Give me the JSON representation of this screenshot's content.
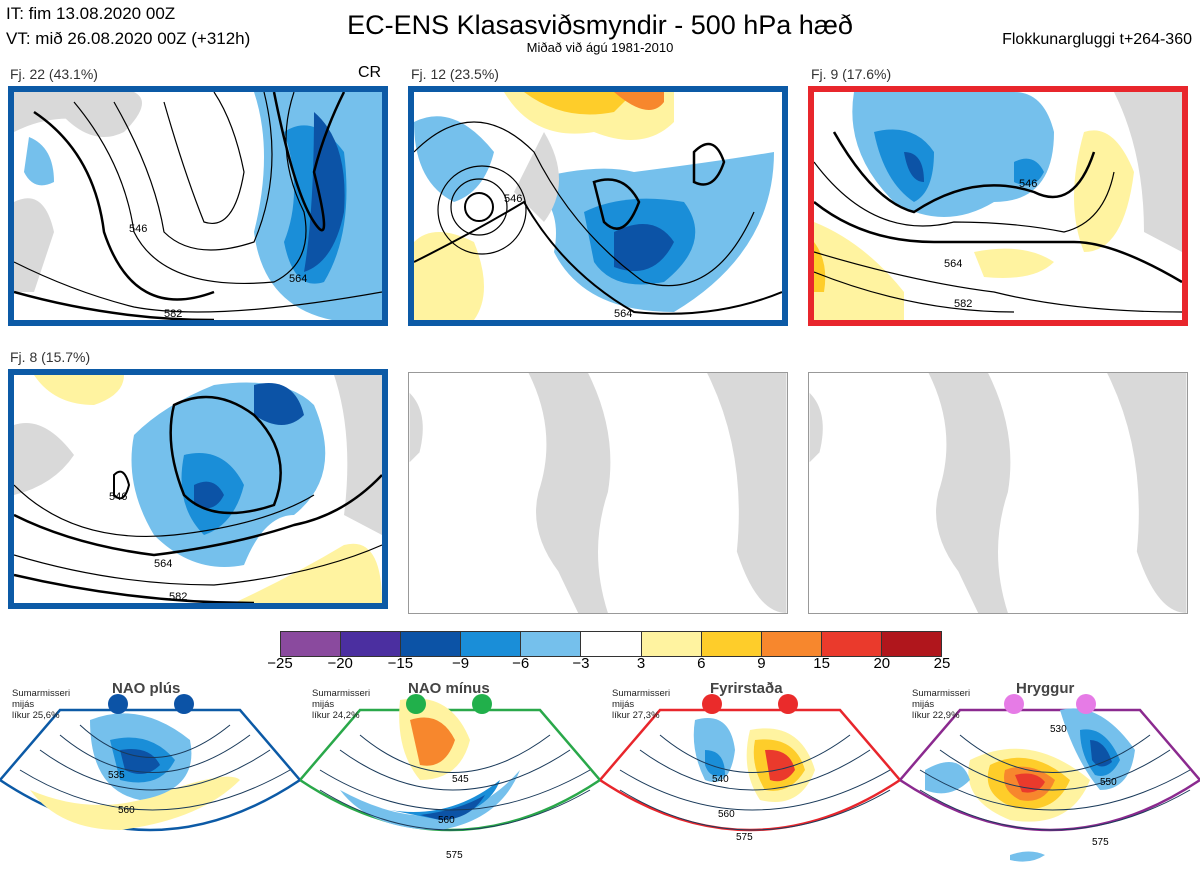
{
  "header": {
    "initial_time": "IT: fim 13.08.2020 00Z",
    "valid_time": "VT: mið 26.08.2020 00Z  (+312h)",
    "title": "EC-ENS Klasasviðsmyndir - 500 hPa hæð",
    "subtitle": "Miðað við ágú 1981-2010",
    "window": "Flokkunargluggi t+264-360"
  },
  "colors": {
    "blue_frame": "#0c5aa6",
    "red_frame": "#e8262c",
    "land": "#d9d9d9",
    "coast": "#8a5a3a"
  },
  "cr_label": "CR",
  "panels": [
    {
      "label": "Fj. 22 (43.1%)",
      "frame": "blue",
      "contours": [
        "546",
        "564",
        "582"
      ]
    },
    {
      "label": "Fj. 12 (23.5%)",
      "frame": "blue",
      "contours": [
        "546",
        "564"
      ]
    },
    {
      "label": "Fj. 9 (17.6%)",
      "frame": "red",
      "contours": [
        "546",
        "564",
        "582"
      ]
    },
    {
      "label": "Fj. 8 (15.7%)",
      "frame": "blue",
      "contours": [
        "546",
        "564",
        "582"
      ]
    }
  ],
  "colorbar": {
    "ticks": [
      "−25",
      "−20",
      "−15",
      "−9",
      "−6",
      "−3",
      "3",
      "6",
      "9",
      "15",
      "20",
      "25"
    ],
    "colors": [
      "#8a4a9e",
      "#4b2fa0",
      "#0c53a6",
      "#1a8ed8",
      "#75c0ec",
      "#ffffff",
      "#fff3a0",
      "#fecd2a",
      "#f7872d",
      "#ea3a2c",
      "#b0161c"
    ]
  },
  "regimes": [
    {
      "name": "NAO plús",
      "season": "Sumarmisseri",
      "region": "mijás",
      "probability": "líkur 25,6%",
      "marker_color": "#0c53a6",
      "frame_color": "#0c5aa6",
      "contours": [
        "535",
        "560"
      ]
    },
    {
      "name": "NAO mínus",
      "season": "Sumarmisseri",
      "region": "mijás",
      "probability": "líkur 24,2%",
      "marker_color": "#21b04b",
      "frame_color": "#2aa84a",
      "contours": [
        "545",
        "560",
        "575"
      ]
    },
    {
      "name": "Fyrirstaða",
      "season": "Sumarmisseri",
      "region": "mijás",
      "probability": "líkur 27,3%",
      "marker_color": "#ea2b2b",
      "frame_color": "#e8262c",
      "contours": [
        "540",
        "560",
        "575"
      ]
    },
    {
      "name": "Hryggur",
      "season": "Sumarmisseri",
      "region": "mijás",
      "probability": "líkur 22,9%",
      "marker_color": "#e67be6",
      "frame_color": "#8b2a8f",
      "contours": [
        "530",
        "550",
        "575"
      ]
    }
  ]
}
